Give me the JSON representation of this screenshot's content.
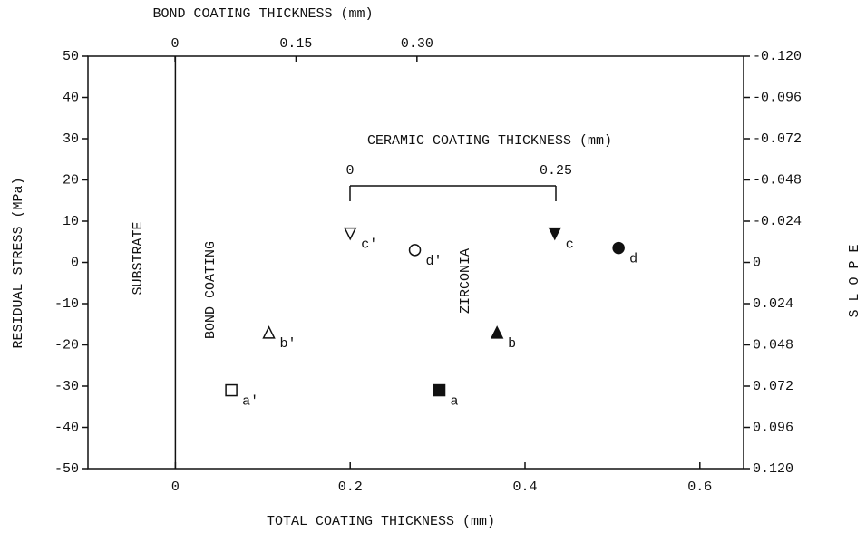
{
  "chart_data": {
    "type": "scatter",
    "x_label": "TOTAL COATING THICKNESS (mm)",
    "y_label": "RESIDUAL STRESS (MPa)",
    "x2_label": "BOND COATING THICKNESS (mm)",
    "y2_label": "S L O P E",
    "xlim": [
      -0.1,
      0.65
    ],
    "xticks": [
      0,
      0.2,
      0.4,
      0.6
    ],
    "ylim": [
      -50,
      50
    ],
    "yticks": [
      -50,
      -40,
      -30,
      -20,
      -10,
      0,
      10,
      20,
      30,
      40,
      50
    ],
    "x2lim": [
      -0.108,
      0.705
    ],
    "x2ticks": [
      0,
      0.15,
      {
        "value": 0.3,
        "label": "0.30"
      }
    ],
    "y2lim": [
      0.12,
      -0.12
    ],
    "y2ticks": [
      {
        "value": 0.12,
        "label": "0.120"
      },
      0.096,
      0.072,
      0.048,
      0.024,
      0,
      -0.024,
      -0.048,
      -0.072,
      -0.096,
      {
        "value": -0.12,
        "label": "-0.120"
      }
    ],
    "annotations": {
      "substrate": "SUBSTRATE",
      "bond": "BOND COATING",
      "zirconia": "ZIRCONIA"
    },
    "ceramic_axis": {
      "label": "CERAMIC COATING THICKNESS (mm)",
      "ticks": [
        0,
        0.25
      ]
    },
    "series": [
      {
        "color": "#000000",
        "x": [
          0.064,
          0.107,
          0.2,
          0.274,
          0.302,
          0.368,
          0.434,
          0.507
        ],
        "values": [
          -31,
          -17,
          7,
          3,
          -31,
          -17,
          7,
          3.5
        ],
        "point_labels": [
          "a'",
          "b'",
          "c'",
          "d'",
          "a",
          "b",
          "c",
          "d"
        ],
        "markers": [
          "square-open",
          "triangle-open",
          "down-open",
          "circle-open",
          "square",
          "triangle",
          "down",
          "circle"
        ]
      }
    ]
  }
}
